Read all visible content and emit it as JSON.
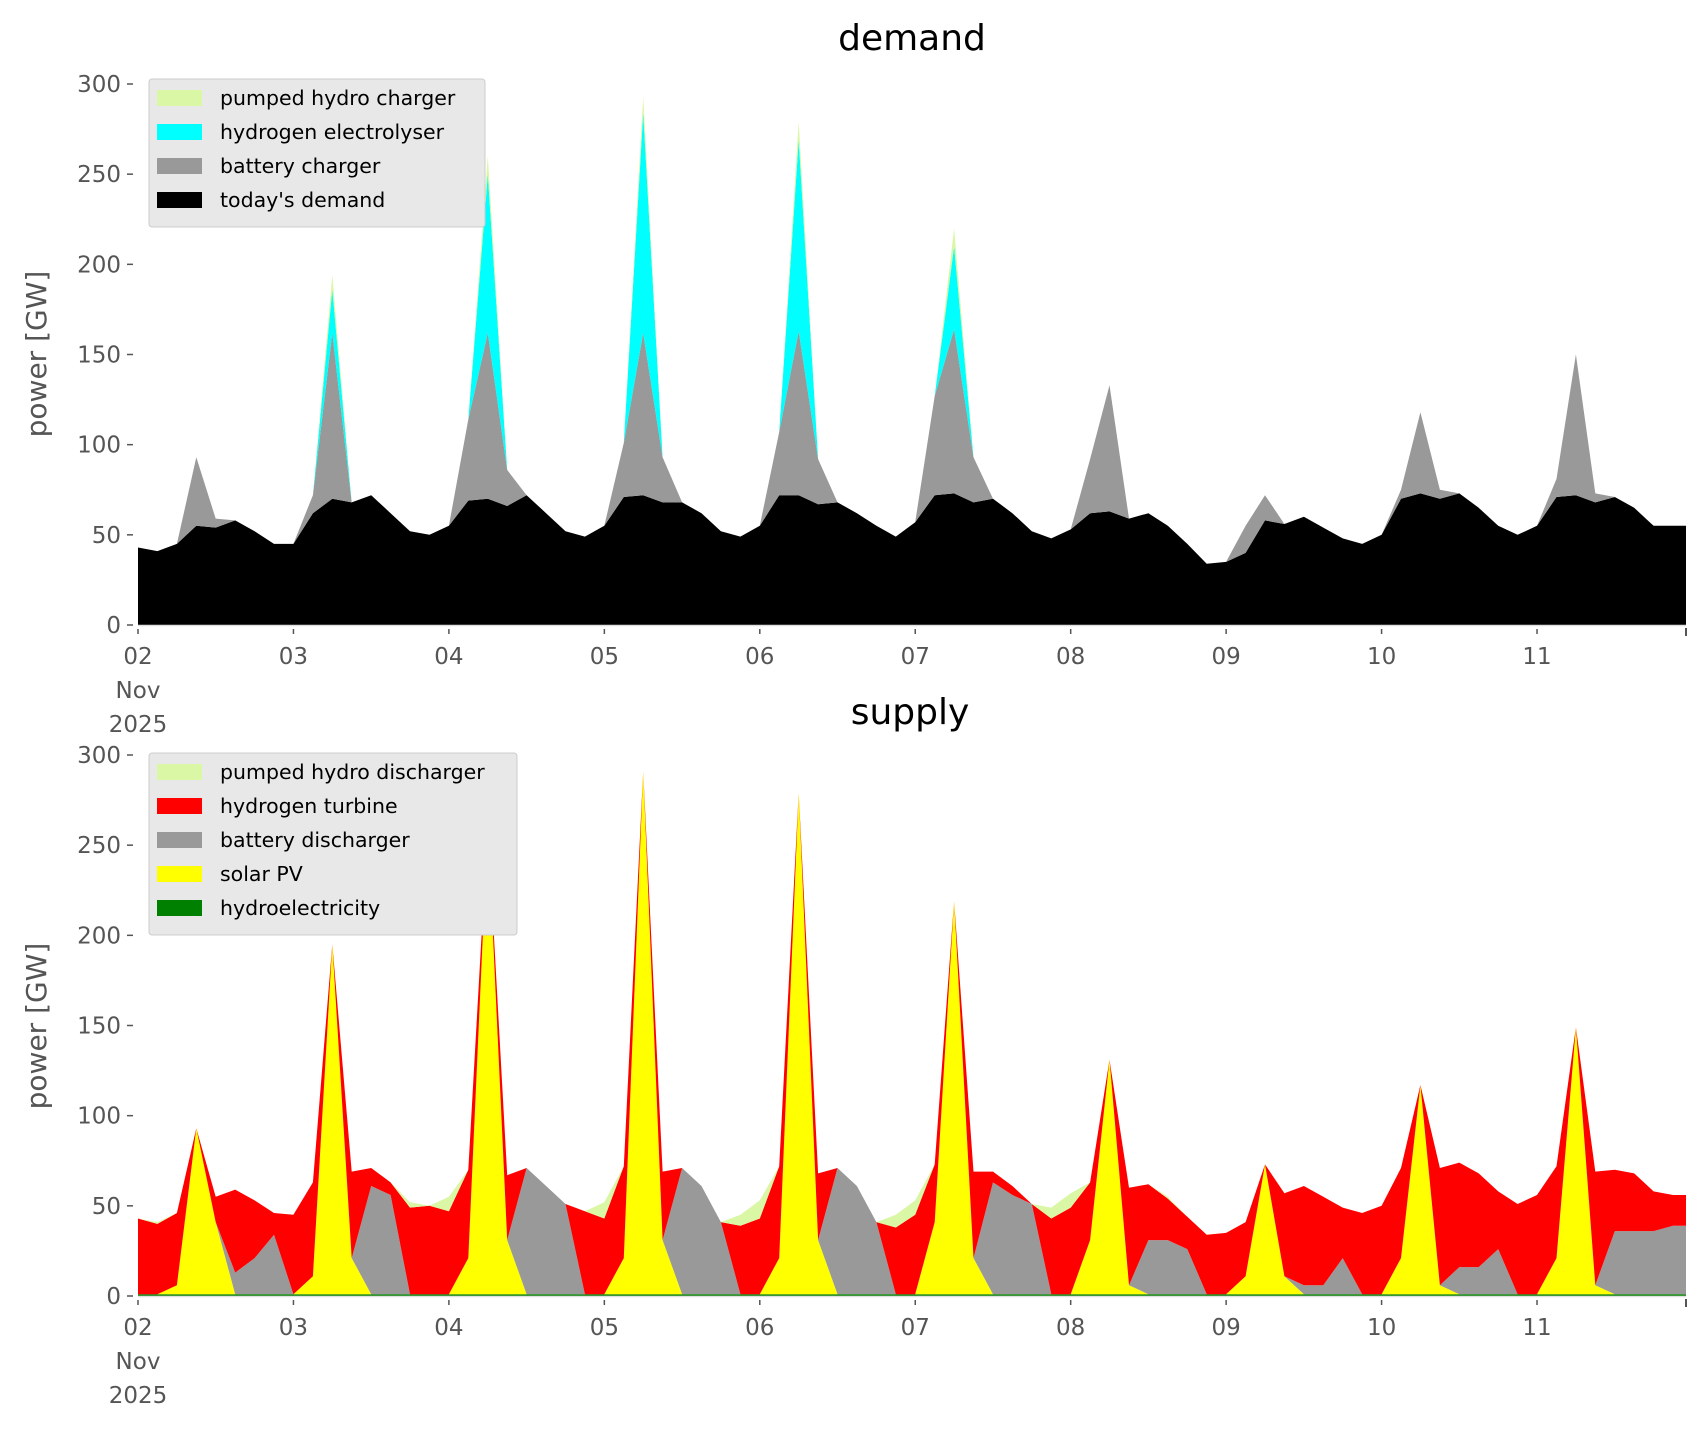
{
  "chart_data": [
    {
      "type": "area",
      "stacked": true,
      "title": "demand",
      "xlabel": "",
      "ylabel": "power [GW]",
      "ylim": [
        0,
        300
      ],
      "yticks": [
        "0",
        "50",
        "100",
        "150",
        "200",
        "250",
        "300"
      ],
      "ytick_values": [
        0,
        50,
        100,
        150,
        200,
        250,
        300
      ],
      "xtick_labels": [
        "02\nNov\n2025",
        "03",
        "04",
        "05",
        "06",
        "07",
        "08",
        "09",
        "10",
        "11"
      ],
      "x_unit": "hours since 2025-11-02 00:00",
      "x_step_hours": 3,
      "x_range_hours": [
        0,
        239
      ],
      "grid": false,
      "legend_position": "top-left",
      "series": [
        {
          "name": "today's demand",
          "color": "#000000",
          "values": [
            43,
            41,
            45,
            55,
            54,
            58,
            52,
            45,
            45,
            62,
            70,
            68,
            72,
            62,
            52,
            50,
            55,
            69,
            70,
            66,
            72,
            62,
            52,
            49,
            55,
            71,
            72,
            68,
            68,
            62,
            52,
            49,
            55,
            72,
            72,
            67,
            68,
            62,
            55,
            49,
            57,
            72,
            73,
            68,
            70,
            62,
            52,
            48,
            53,
            62,
            63,
            59,
            62,
            55,
            45,
            34,
            35,
            40,
            58,
            56,
            60,
            54,
            48,
            45,
            50,
            70,
            73,
            70,
            73,
            65,
            55,
            50,
            55,
            71,
            72,
            68,
            71,
            65,
            55,
            55
          ]
        },
        {
          "name": "battery charger",
          "color": "#999999",
          "values": [
            0,
            0,
            0,
            38,
            5,
            0,
            0,
            0,
            0,
            10,
            92,
            0,
            0,
            0,
            0,
            0,
            0,
            45,
            92,
            20,
            0,
            0,
            0,
            0,
            0,
            30,
            90,
            25,
            0,
            0,
            0,
            0,
            0,
            35,
            91,
            25,
            0,
            0,
            0,
            0,
            0,
            55,
            91,
            25,
            0,
            0,
            0,
            0,
            0,
            30,
            70,
            0,
            0,
            0,
            0,
            0,
            0,
            15,
            14,
            0,
            0,
            0,
            0,
            0,
            0,
            5,
            45,
            5,
            0,
            0,
            0,
            0,
            0,
            10,
            78,
            5,
            0,
            0,
            0,
            0
          ]
        },
        {
          "name": "hydrogen electrolyser",
          "color": "#00ffff",
          "values": [
            0,
            0,
            0,
            0,
            0,
            0,
            0,
            0,
            0,
            0,
            24,
            0,
            0,
            0,
            0,
            0,
            0,
            0,
            88,
            0,
            0,
            0,
            0,
            0,
            0,
            0,
            122,
            0,
            0,
            0,
            0,
            0,
            0,
            0,
            106,
            0,
            0,
            0,
            0,
            0,
            0,
            0,
            46,
            0,
            0,
            0,
            0,
            0,
            0,
            0,
            0,
            0,
            0,
            0,
            0,
            0,
            0,
            0,
            0,
            0,
            0,
            0,
            0,
            0,
            0,
            0,
            0,
            0,
            0,
            0,
            0,
            0,
            0,
            0,
            0,
            0,
            0,
            0,
            0,
            0
          ]
        },
        {
          "name": "pumped hydro charger",
          "color": "#d9f7a5",
          "values": [
            0,
            0,
            0,
            0,
            0,
            0,
            0,
            0,
            0,
            0,
            8,
            0,
            0,
            0,
            0,
            0,
            0,
            0,
            10,
            0,
            0,
            0,
            0,
            0,
            0,
            0,
            9,
            0,
            0,
            0,
            0,
            0,
            0,
            0,
            10,
            0,
            0,
            0,
            0,
            0,
            0,
            0,
            10,
            0,
            0,
            0,
            0,
            0,
            0,
            0,
            0,
            0,
            0,
            0,
            0,
            0,
            0,
            0,
            0,
            0,
            0,
            0,
            0,
            0,
            0,
            0,
            0,
            0,
            0,
            0,
            0,
            0,
            0,
            0,
            0,
            0,
            0,
            0,
            0,
            0
          ]
        }
      ],
      "legend_order": [
        "pumped hydro charger",
        "hydrogen electrolyser",
        "battery charger",
        "today's demand"
      ]
    },
    {
      "type": "area",
      "stacked": true,
      "title": "supply",
      "xlabel": "",
      "ylabel": "power [GW]",
      "ylim": [
        0,
        300
      ],
      "yticks": [
        "0",
        "50",
        "100",
        "150",
        "200",
        "250",
        "300"
      ],
      "ytick_values": [
        0,
        50,
        100,
        150,
        200,
        250,
        300
      ],
      "xtick_labels": [
        "02\nNov\n2025",
        "03",
        "04",
        "05",
        "06",
        "07",
        "08",
        "09",
        "10",
        "11"
      ],
      "x_unit": "hours since 2025-11-02 00:00",
      "x_step_hours": 3,
      "x_range_hours": [
        0,
        239
      ],
      "grid": false,
      "legend_position": "top-left",
      "series": [
        {
          "name": "hydroelectricity",
          "color": "#008000",
          "values": [
            1,
            1,
            1,
            1,
            1,
            1,
            1,
            1,
            1,
            1,
            1,
            1,
            1,
            1,
            1,
            1,
            1,
            1,
            1,
            1,
            1,
            1,
            1,
            1,
            1,
            1,
            1,
            1,
            1,
            1,
            1,
            1,
            1,
            1,
            1,
            1,
            1,
            1,
            1,
            1,
            1,
            1,
            1,
            1,
            1,
            1,
            1,
            1,
            1,
            1,
            1,
            1,
            1,
            1,
            1,
            1,
            1,
            1,
            1,
            1,
            1,
            1,
            1,
            1,
            1,
            1,
            1,
            1,
            1,
            1,
            1,
            1,
            1,
            1,
            1,
            1,
            1,
            1,
            1,
            1
          ]
        },
        {
          "name": "solar PV",
          "color": "#ffff00",
          "values": [
            0,
            0,
            5,
            92,
            40,
            0,
            0,
            0,
            0,
            10,
            194,
            20,
            0,
            0,
            0,
            0,
            0,
            20,
            260,
            30,
            0,
            0,
            0,
            0,
            0,
            20,
            290,
            30,
            0,
            0,
            0,
            0,
            0,
            20,
            278,
            30,
            0,
            0,
            0,
            0,
            0,
            40,
            218,
            20,
            0,
            0,
            0,
            0,
            0,
            30,
            130,
            5,
            0,
            0,
            0,
            0,
            0,
            10,
            72,
            10,
            0,
            0,
            0,
            0,
            0,
            20,
            116,
            5,
            0,
            0,
            0,
            0,
            0,
            20,
            148,
            5,
            0,
            0,
            0,
            0
          ]
        },
        {
          "name": "battery discharger",
          "color": "#999999",
          "values": [
            0,
            0,
            0,
            0,
            0,
            12,
            20,
            33,
            0,
            0,
            0,
            0,
            60,
            55,
            0,
            0,
            0,
            0,
            0,
            0,
            70,
            60,
            50,
            0,
            0,
            0,
            0,
            0,
            70,
            60,
            40,
            0,
            0,
            0,
            0,
            0,
            70,
            60,
            40,
            0,
            0,
            0,
            0,
            0,
            62,
            55,
            50,
            0,
            0,
            0,
            0,
            0,
            30,
            30,
            25,
            0,
            0,
            0,
            0,
            0,
            5,
            5,
            20,
            0,
            0,
            0,
            0,
            0,
            15,
            15,
            25,
            0,
            0,
            0,
            0,
            0,
            35,
            35,
            35,
            38
          ]
        },
        {
          "name": "hydrogen turbine",
          "color": "#ff0000",
          "values": [
            42,
            39,
            40,
            0,
            14,
            46,
            32,
            12,
            44,
            52,
            0,
            48,
            10,
            7,
            48,
            49,
            46,
            49,
            0,
            36,
            0,
            0,
            0,
            46,
            42,
            51,
            0,
            38,
            0,
            0,
            0,
            38,
            42,
            51,
            0,
            37,
            0,
            0,
            0,
            37,
            44,
            32,
            0,
            48,
            6,
            5,
            0,
            42,
            48,
            32,
            0,
            54,
            31,
            23,
            18,
            33,
            34,
            30,
            0,
            46,
            55,
            49,
            28,
            45,
            49,
            50,
            0,
            65,
            58,
            52,
            32,
            50,
            55,
            51,
            0,
            63,
            34,
            32,
            22,
            17
          ]
        },
        {
          "name": "pumped hydro discharger",
          "color": "#d9f7a5",
          "values": [
            0,
            1,
            0,
            0,
            0,
            0,
            0,
            0,
            0,
            0,
            0,
            0,
            0,
            0,
            3,
            0,
            8,
            0,
            0,
            0,
            0,
            0,
            0,
            0,
            9,
            0,
            0,
            0,
            0,
            0,
            0,
            6,
            10,
            0,
            0,
            0,
            0,
            0,
            0,
            7,
            8,
            0,
            0,
            0,
            0,
            0,
            0,
            6,
            8,
            0,
            0,
            0,
            0,
            1,
            0,
            0,
            0,
            0,
            0,
            0,
            0,
            0,
            0,
            0,
            0,
            0,
            0,
            0,
            0,
            0,
            0,
            0,
            0,
            0,
            0,
            0,
            0,
            0,
            0,
            0
          ]
        }
      ],
      "legend_order": [
        "pumped hydro discharger",
        "hydrogen turbine",
        "battery discharger",
        "solar PV",
        "hydroelectricity"
      ]
    }
  ]
}
